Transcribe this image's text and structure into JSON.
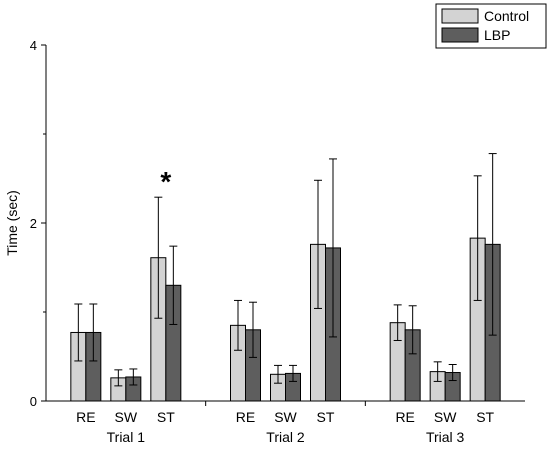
{
  "chart_data": {
    "type": "bar",
    "title": "",
    "ylabel": "Time (sec)",
    "xlabel": "",
    "ylim": [
      0,
      4
    ],
    "yticks": [
      0,
      2,
      4
    ],
    "grid": false,
    "legend_position": "top-right",
    "groups": [
      {
        "label": "Trial 1",
        "categories": [
          "RE",
          "SW",
          "ST"
        ]
      },
      {
        "label": "Trial 2",
        "categories": [
          "RE",
          "SW",
          "ST"
        ]
      },
      {
        "label": "Trial 3",
        "categories": [
          "RE",
          "SW",
          "ST"
        ]
      }
    ],
    "series": [
      {
        "name": "Control",
        "color": "#d3d3d3",
        "values": [
          0.77,
          0.26,
          1.61,
          0.85,
          0.3,
          1.76,
          0.88,
          0.33,
          1.83
        ],
        "errors": [
          0.32,
          0.09,
          0.68,
          0.28,
          0.1,
          0.72,
          0.2,
          0.11,
          0.7
        ]
      },
      {
        "name": "LBP",
        "color": "#5e5e5e",
        "values": [
          0.77,
          0.27,
          1.3,
          0.8,
          0.31,
          1.72,
          0.8,
          0.32,
          1.76
        ],
        "errors": [
          0.32,
          0.09,
          0.44,
          0.31,
          0.09,
          1.0,
          0.27,
          0.09,
          1.02
        ]
      }
    ],
    "annotations": [
      {
        "text": "*",
        "group": 0,
        "category": 2,
        "y": 2.56
      }
    ]
  }
}
